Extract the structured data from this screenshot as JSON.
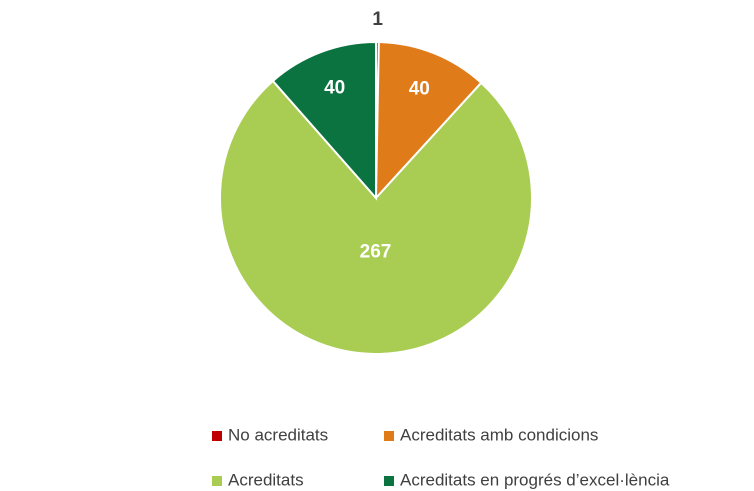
{
  "chart_data": {
    "type": "pie",
    "categories": [
      "No acreditats",
      "Acreditats amb condicions",
      "Acreditats",
      "Acreditats en progrés d’excel·lència"
    ],
    "values": [
      1,
      40,
      267,
      40
    ],
    "colors": [
      "#c00000",
      "#e07b1a",
      "#a9cc52",
      "#0a7340"
    ],
    "legend": "bottom"
  }
}
